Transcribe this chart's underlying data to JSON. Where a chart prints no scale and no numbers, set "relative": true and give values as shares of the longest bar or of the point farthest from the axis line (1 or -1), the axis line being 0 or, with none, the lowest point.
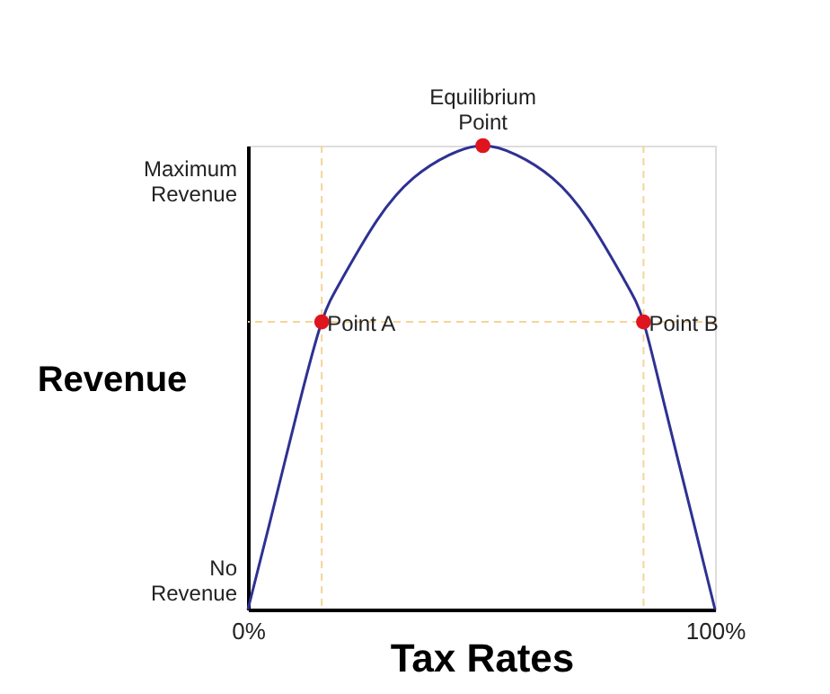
{
  "chart_data": {
    "type": "line",
    "xlabel": "Tax Rates",
    "ylabel": "Revenue",
    "relative": true,
    "xlim": [
      0,
      100
    ],
    "xticks": [
      {
        "value": 0,
        "label": "0%"
      },
      {
        "value": 100,
        "label": "100%"
      }
    ],
    "series": [
      {
        "color": "#2e3192",
        "x": [
          0,
          4.5,
          10.9,
          15.8,
          20,
          27.7,
          35.4,
          43.1,
          50.3,
          57.5,
          65.2,
          72.9,
          80.6,
          84.7,
          89.2,
          95.6,
          100
        ],
        "values": [
          0,
          0.18,
          0.44,
          0.62,
          0.71,
          0.84,
          0.93,
          0.98,
          1,
          0.98,
          0.93,
          0.84,
          0.71,
          0.62,
          0.44,
          0.18,
          0
        ]
      },
      {
        "type": "scatter",
        "color": "#e0141e",
        "marker": "circle",
        "x": [
          15.8,
          50.3,
          84.7
        ],
        "values": [
          0.62,
          1,
          0.62
        ]
      }
    ],
    "ref_lines": [
      {
        "axis": "x",
        "value": 15.8,
        "color": "#f5d49a",
        "line_style": "dashed"
      },
      {
        "axis": "x",
        "value": 84.7,
        "color": "#f5d49a",
        "line_style": "dashed"
      },
      {
        "axis": "y",
        "value": 0.62,
        "color": "#f5d49a",
        "line_style": "dashed"
      }
    ],
    "annotations": [
      "Maximum Revenue",
      "No Revenue",
      {
        "text": "Point A",
        "x": 15.8,
        "y": 0.62
      },
      {
        "text": "Equilibrium Point",
        "x": 50.3,
        "y": 1
      },
      {
        "text": "Point B",
        "x": 84.7,
        "y": 0.62
      }
    ]
  }
}
